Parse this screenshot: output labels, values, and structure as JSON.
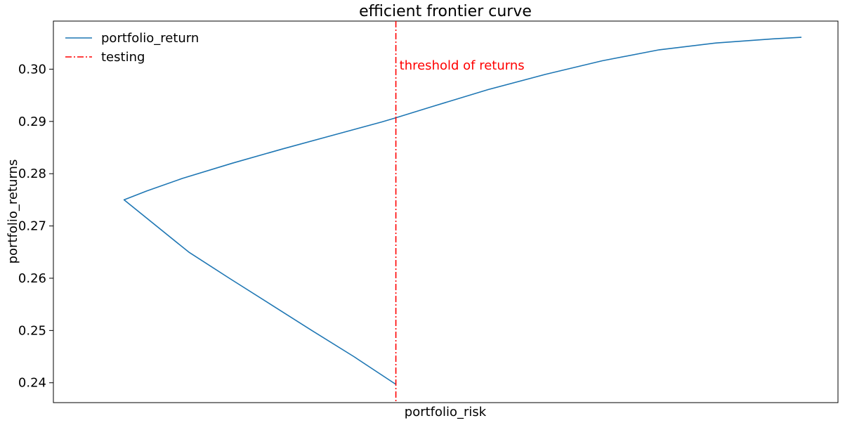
{
  "chart_data": {
    "type": "line",
    "title": "efficient frontier curve",
    "xlabel": "portfolio_risk",
    "ylabel": "portfolio_returns",
    "ylim": [
      0.2362,
      0.3092
    ],
    "xlim": [
      0.0,
      1.0
    ],
    "yticks": [
      0.24,
      0.25,
      0.26,
      0.27,
      0.28,
      0.29,
      0.3
    ],
    "ytick_labels": [
      "0.24",
      "0.25",
      "0.26",
      "0.27",
      "0.28",
      "0.29",
      "0.30"
    ],
    "xticks_visible": false,
    "grid": false,
    "legend_position": "top-left",
    "series": [
      {
        "name": "portfolio_return",
        "color": "#1f77b4",
        "style": "solid",
        "x": [
          0.43,
          0.371,
          0.312,
          0.254,
          0.196,
          0.139,
          0.048,
          0.08,
          0.13,
          0.2,
          0.27,
          0.34,
          0.41,
          0.43,
          0.48,
          0.56,
          0.64,
          0.72,
          0.8,
          0.88,
          0.96,
          1.0
        ],
        "y": [
          0.2397,
          0.245,
          0.25,
          0.255,
          0.26,
          0.265,
          0.275,
          0.2767,
          0.2791,
          0.282,
          0.2847,
          0.2873,
          0.2899,
          0.2907,
          0.2928,
          0.2961,
          0.299,
          0.3016,
          0.3037,
          0.305,
          0.3058,
          0.3061
        ]
      }
    ],
    "vlines": [
      {
        "name": "testing",
        "x": 0.43,
        "color": "#ff0000",
        "style": "dashdot"
      }
    ],
    "annotations": [
      {
        "text": "threshold of returns",
        "x": 0.435,
        "y": 0.2999,
        "color": "#ff0000"
      }
    ]
  }
}
